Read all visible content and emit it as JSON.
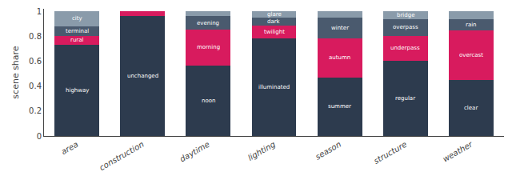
{
  "chart_data": {
    "type": "bar",
    "stacked": true,
    "ylabel": "scene share",
    "categories": [
      "area",
      "construction",
      "daytime",
      "lighting",
      "season",
      "structure",
      "weather"
    ],
    "series": [
      {
        "color": "#2d3b4e",
        "values": [
          0.73,
          0.965,
          0.565,
          0.785,
          0.47,
          0.605,
          0.45
        ],
        "labels": [
          "highway",
          "unchanged",
          "noon",
          "illuminated",
          "summer",
          "regular",
          "clear"
        ]
      },
      {
        "color": "#d81b5e",
        "values": [
          0.075,
          0.035,
          0.29,
          0.1,
          0.315,
          0.2,
          0.395
        ],
        "labels": [
          "rural",
          null,
          "morning",
          "twilight",
          "autumn",
          "underpass",
          "overcast"
        ]
      },
      {
        "color": "#4a5a6e",
        "values": [
          0.075,
          null,
          0.105,
          0.065,
          0.165,
          0.13,
          0.093
        ],
        "labels": [
          "terminal",
          null,
          "evening",
          "dark",
          "winter",
          "overpass",
          "rain"
        ]
      },
      {
        "color": "#8a9baa",
        "values": [
          0.12,
          null,
          0.04,
          0.05,
          0.05,
          0.065,
          0.062
        ],
        "labels": [
          "city",
          null,
          null,
          "glare",
          null,
          "bridge",
          null
        ]
      }
    ],
    "ylim": [
      0,
      1.02
    ],
    "yticks": [
      0,
      0.2,
      0.4,
      0.6,
      0.8,
      1
    ],
    "grid": false
  }
}
